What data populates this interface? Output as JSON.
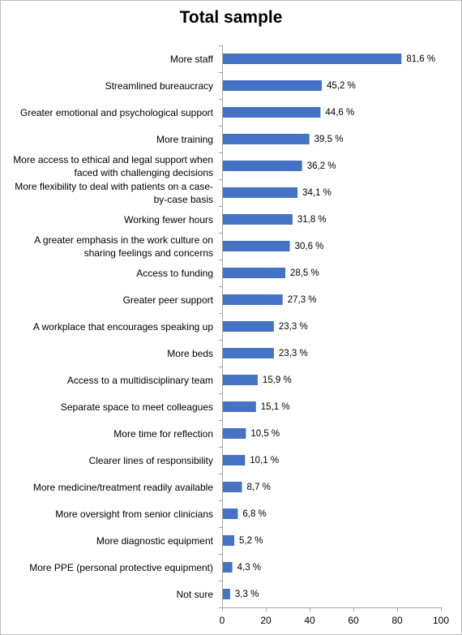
{
  "chart_data": {
    "type": "bar",
    "orientation": "horizontal",
    "title": "Total sample",
    "categories": [
      "More staff",
      "Streamlined bureaucracy",
      "Greater emotional and psychological support",
      "More training",
      "More access to ethical and legal support when faced with challenging decisions",
      "More flexibility to deal with patients on a case-by-case basis",
      "Working fewer hours",
      "A greater emphasis in the work culture on sharing feelings and concerns",
      "Access to funding",
      "Greater peer support",
      "A workplace that encourages speaking up",
      "More beds",
      "Access to a multidisciplinary team",
      "Separate space to meet colleagues",
      "More time for reflection",
      "Clearer lines of responsibility",
      "More medicine/treatment readily available",
      "More oversight from senior clinicians",
      "More diagnostic equipment",
      "More PPE (personal protective equipment)",
      "Not sure"
    ],
    "category_lines": [
      [
        "More staff"
      ],
      [
        "Streamlined bureaucracy"
      ],
      [
        "Greater emotional and psychological support"
      ],
      [
        "More training"
      ],
      [
        "More access to ethical and legal support when",
        "faced with challenging decisions"
      ],
      [
        "More flexibility to deal with patients on a case-",
        "by-case basis"
      ],
      [
        "Working fewer hours"
      ],
      [
        "A greater emphasis in the work culture on",
        "sharing feelings and concerns"
      ],
      [
        "Access to funding"
      ],
      [
        "Greater peer support"
      ],
      [
        "A workplace that encourages speaking up"
      ],
      [
        "More beds"
      ],
      [
        "Access to a multidisciplinary team"
      ],
      [
        "Separate space to meet colleagues"
      ],
      [
        "More time for reflection"
      ],
      [
        "Clearer lines of responsibility"
      ],
      [
        "More medicine/treatment readily available"
      ],
      [
        "More oversight from senior clinicians"
      ],
      [
        "More diagnostic equipment"
      ],
      [
        "More PPE (personal protective equipment)"
      ],
      [
        "Not sure"
      ]
    ],
    "values": [
      81.6,
      45.2,
      44.6,
      39.5,
      36.2,
      34.1,
      31.8,
      30.6,
      28.5,
      27.3,
      23.3,
      23.3,
      15.9,
      15.1,
      10.5,
      10.1,
      8.7,
      6.8,
      5.2,
      4.3,
      3.3
    ],
    "value_labels": [
      "81,6 %",
      "45,2 %",
      "44,6 %",
      "39,5 %",
      "36,2 %",
      "34,1 %",
      "31,8 %",
      "30,6 %",
      "28,5 %",
      "27,3 %",
      "23,3 %",
      "23,3 %",
      "15,9 %",
      "15,1 %",
      "10,5 %",
      "10,1 %",
      "8,7 %",
      "6,8 %",
      "5,2 %",
      "4,3 %",
      "3,3 %"
    ],
    "xlim": [
      0,
      100
    ],
    "xticks": [
      0,
      20,
      40,
      60,
      80,
      100
    ],
    "xtick_labels": [
      "0",
      "20",
      "40",
      "60",
      "80",
      "100"
    ],
    "xlabel": "",
    "ylabel": "",
    "grid": false,
    "legend": "none",
    "bar_color": "#4472c4"
  }
}
